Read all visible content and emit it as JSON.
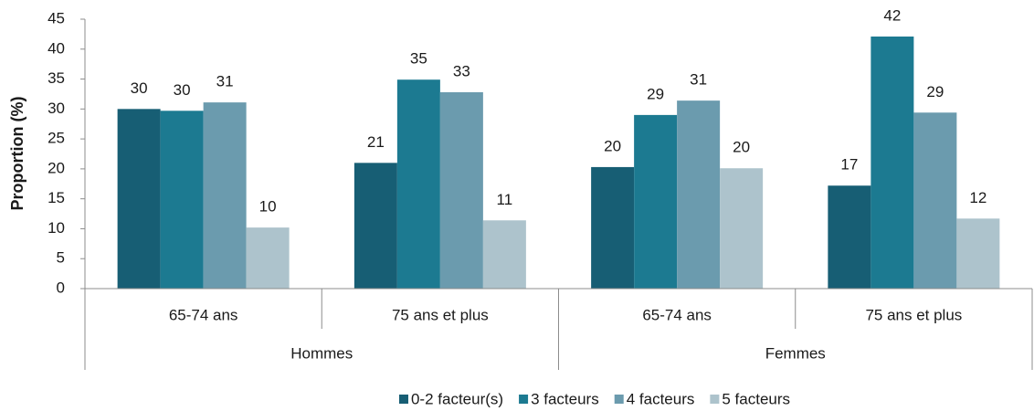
{
  "chart_data": {
    "type": "bar",
    "y_axis_label": "Proportion (%)",
    "categories": [
      "65-74 ans",
      "75 ans et plus",
      "65-74 ans",
      "75 ans et plus"
    ],
    "group_labels": [
      "Hommes",
      "Femmes"
    ],
    "series": [
      {
        "name": "0-2 facteur(s)",
        "color": "#175e74",
        "values": [
          30.0,
          21.0,
          20.3,
          17.2
        ],
        "value_labels": [
          "30",
          "21",
          "20",
          "17"
        ]
      },
      {
        "name": "3 facteurs",
        "color": "#1c7a91",
        "values": [
          29.7,
          34.9,
          29.0,
          42.1
        ],
        "value_labels": [
          "30",
          "35",
          "29",
          "42"
        ]
      },
      {
        "name": "4 facteurs",
        "color": "#6b9bae",
        "values": [
          31.1,
          32.8,
          31.4,
          29.4
        ],
        "value_labels": [
          "31",
          "33",
          "31",
          "29"
        ]
      },
      {
        "name": "5 facteurs",
        "color": "#adc3cc",
        "values": [
          10.2,
          11.4,
          20.1,
          11.7
        ],
        "value_labels": [
          "10",
          "11",
          "20",
          "12"
        ]
      }
    ],
    "ylim": [
      0,
      45
    ],
    "yticks": [
      0,
      5,
      10,
      15,
      20,
      25,
      30,
      35,
      40,
      45
    ],
    "legend": "bottom"
  }
}
